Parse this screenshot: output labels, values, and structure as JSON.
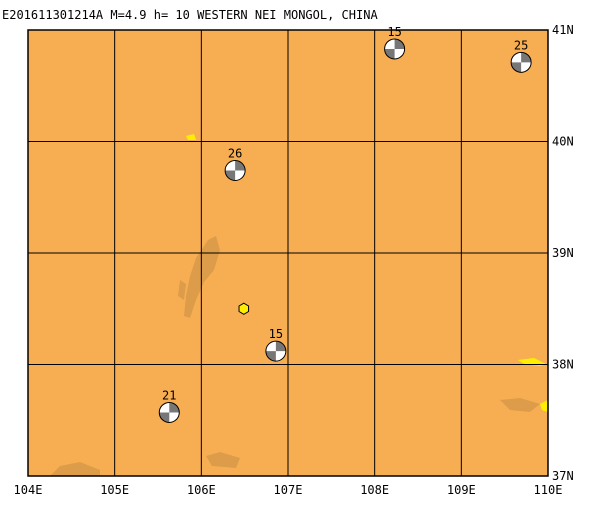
{
  "chart_data": {
    "type": "map",
    "title": "E201611301214A M=4.9 h= 10 WESTERN NEI MONGOL, CHINA",
    "xlim": [
      104,
      110
    ],
    "ylim": [
      37,
      41
    ],
    "xticks": [
      {
        "value": 104,
        "label": "104E"
      },
      {
        "value": 105,
        "label": "105E"
      },
      {
        "value": 106,
        "label": "106E"
      },
      {
        "value": 107,
        "label": "107E"
      },
      {
        "value": 108,
        "label": "108E"
      },
      {
        "value": 109,
        "label": "109E"
      },
      {
        "value": 110,
        "label": "110E"
      }
    ],
    "yticks": [
      {
        "value": 37,
        "label": "37N"
      },
      {
        "value": 38,
        "label": "38N"
      },
      {
        "value": 39,
        "label": "39N"
      },
      {
        "value": 40,
        "label": "40N"
      },
      {
        "value": 41,
        "label": "41N"
      }
    ],
    "grid": true,
    "epicenter": {
      "lon": 106.49,
      "lat": 38.5,
      "color": "#ffee00"
    },
    "events": [
      {
        "lon": 108.23,
        "lat": 40.83,
        "depth": 15
      },
      {
        "lon": 109.69,
        "lat": 40.71,
        "depth": 25
      },
      {
        "lon": 106.39,
        "lat": 39.74,
        "depth": 26
      },
      {
        "lon": 106.86,
        "lat": 38.12,
        "depth": 15
      },
      {
        "lon": 105.63,
        "lat": 37.57,
        "depth": 21
      }
    ]
  }
}
